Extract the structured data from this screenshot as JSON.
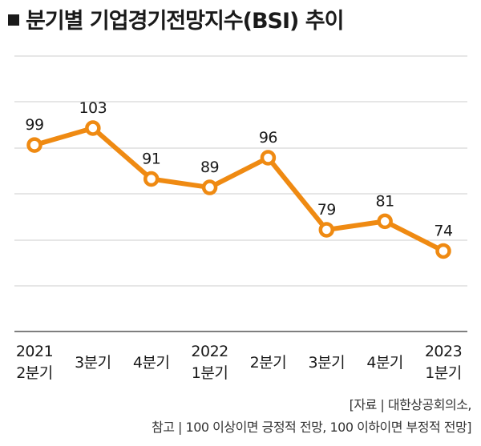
{
  "title": "분기별 기업경기전망지수(BSI) 추이",
  "source": {
    "line1": "[자료 | 대한상공회의소,",
    "line2": "참고 | 100 이상이면 긍정적 전망, 100 이하이면 부정적 전망]"
  },
  "chart_data": {
    "type": "line",
    "title": "분기별 기업경기전망지수(BSI) 추이",
    "categories": [
      [
        "2021",
        "2분기"
      ],
      [
        "3분기"
      ],
      [
        "4분기"
      ],
      [
        "2022",
        "1분기"
      ],
      [
        "2분기"
      ],
      [
        "3분기"
      ],
      [
        "4분기"
      ],
      [
        "2023",
        "1분기"
      ]
    ],
    "series": [
      {
        "values": [
          99,
          103,
          91,
          89,
          96,
          79,
          81,
          74
        ]
      }
    ],
    "data_labels": [
      "99",
      "103",
      "91",
      "89",
      "96",
      "79",
      "81",
      "74"
    ],
    "ylim": [
      55,
      120
    ],
    "grid": true,
    "legend": "none",
    "colors": {
      "line": "#ef8a12",
      "marker_fill": "#ffffff",
      "grid": "#cccccc",
      "axis": "#555555"
    }
  }
}
